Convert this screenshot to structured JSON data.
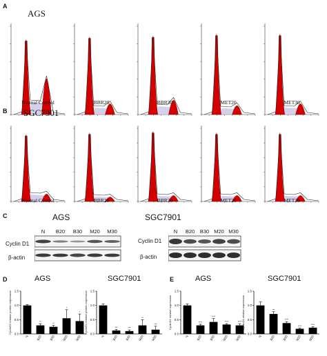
{
  "panels": {
    "A": {
      "letter": "A",
      "cell_line": "AGS",
      "conditions": [
        "Normal Control",
        "BBR20",
        "BBR30",
        "MET20",
        "MET30"
      ]
    },
    "B": {
      "letter": "B",
      "cell_line": "SGC7901",
      "conditions": [
        "Normal Control",
        "BBR20",
        "BBR30",
        "MET20",
        "MET30"
      ]
    },
    "C": {
      "letter": "C",
      "left_title": "AGS",
      "right_title": "SGC7901",
      "left_lanes": [
        "N",
        "B20",
        "B30",
        "M20",
        "M30"
      ],
      "right_lanes": [
        "N",
        "B20",
        "B30",
        "M20",
        "M30"
      ],
      "row1": "Cyclin D1",
      "row2": "β-actin"
    },
    "D": {
      "letter": "D",
      "left_title": "AGS",
      "right_title": "SGC7901"
    },
    "E": {
      "letter": "E",
      "left_title": "AGS",
      "right_title": "SGC7901"
    }
  },
  "chart_data": [
    {
      "type": "bar",
      "panel": "D",
      "title": "AGS",
      "ylabel": "CyclinD1 relative protein expression",
      "categories": [
        "N",
        "B20",
        "B30",
        "M20",
        "M30"
      ],
      "values": [
        1.0,
        0.3,
        0.25,
        0.55,
        0.45
      ],
      "errors": [
        0.03,
        0.06,
        0.05,
        0.3,
        0.25
      ],
      "significance": [
        "",
        "**",
        "**",
        "*",
        "*"
      ],
      "ylim": [
        0,
        1.5
      ],
      "yticks": [
        "0.0",
        "0.5",
        "1.0",
        "1.5"
      ]
    },
    {
      "type": "bar",
      "panel": "D",
      "title": "SGC7901",
      "ylabel": "CyclinD1 relative protein expression",
      "categories": [
        "N",
        "B20",
        "B30",
        "M20",
        "M30"
      ],
      "values": [
        1.0,
        0.12,
        0.1,
        0.3,
        0.15
      ],
      "errors": [
        0.05,
        0.04,
        0.04,
        0.2,
        0.12
      ],
      "significance": [
        "",
        "***",
        "***",
        "**",
        "***"
      ],
      "ylim": [
        0,
        1.5
      ],
      "yticks": [
        "0.0",
        "0.5",
        "1.0",
        "1.5"
      ]
    },
    {
      "type": "bar",
      "panel": "E",
      "title": "AGS",
      "ylabel": "CyclinD1 relative expression",
      "categories": [
        "N",
        "B20",
        "B30",
        "M20",
        "M30"
      ],
      "values": [
        1.0,
        0.3,
        0.42,
        0.33,
        0.3
      ],
      "errors": [
        0.05,
        0.04,
        0.12,
        0.03,
        0.06
      ],
      "significance": [
        "",
        "****",
        "****",
        "****",
        "****"
      ],
      "ylim": [
        0,
        1.5
      ],
      "yticks": [
        "0.0",
        "0.5",
        "1.0",
        "1.5"
      ]
    },
    {
      "type": "bar",
      "panel": "E",
      "title": "SGC7901",
      "ylabel": "CyclinD1 relative expression",
      "categories": [
        "N",
        "B20",
        "B30",
        "M20",
        "M30"
      ],
      "values": [
        1.0,
        0.7,
        0.38,
        0.18,
        0.22
      ],
      "errors": [
        0.12,
        0.08,
        0.05,
        0.02,
        0.03
      ],
      "significance": [
        "",
        "***",
        "****",
        "****",
        "****"
      ],
      "ylim": [
        0,
        1.5
      ],
      "yticks": [
        "0.0",
        "0.5",
        "1.0",
        "1.5"
      ]
    }
  ]
}
